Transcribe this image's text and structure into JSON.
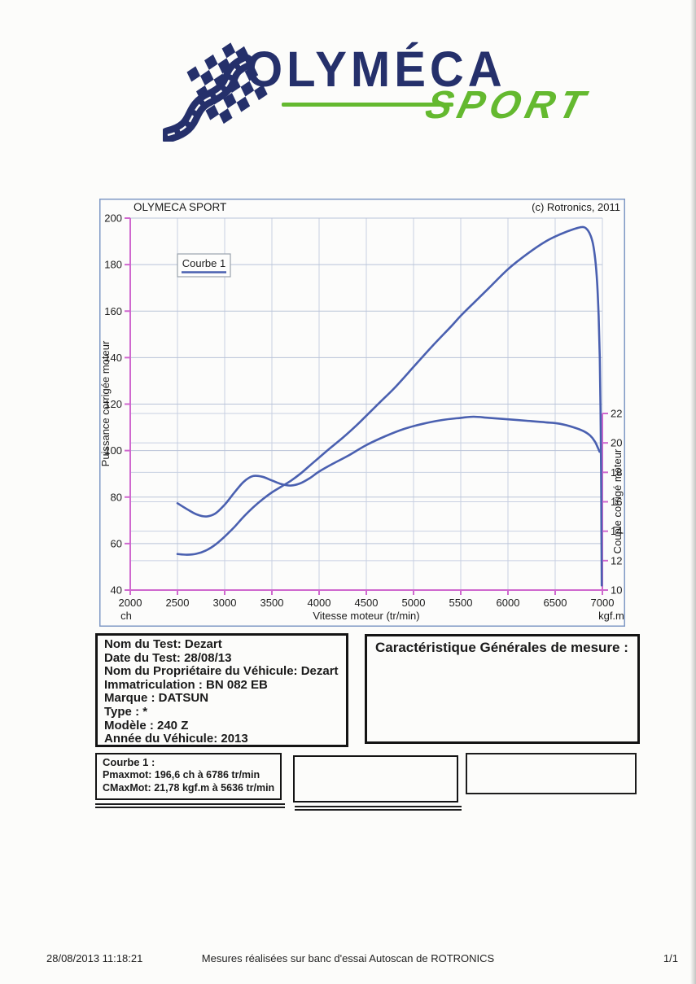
{
  "logo": {
    "title": "OLYMÉCA",
    "subtitle": "SPORT",
    "navy": "#25306b",
    "green": "#64b92f"
  },
  "chart_data": {
    "type": "line",
    "title": "OLYMECA SPORT",
    "copyright": "(c) Rotronics, 2011",
    "legend": "Courbe 1",
    "xlabel": "Vitesse moteur (tr/min)",
    "ylabel_left": "Puissance corrigée moteur",
    "ylabel_right": "Couple corrigé moteur",
    "unit_left": "ch",
    "unit_right": "kgf.m",
    "x_range": [
      2000,
      7000
    ],
    "x_ticks": [
      2000,
      2500,
      3000,
      3500,
      4000,
      4500,
      5000,
      5500,
      6000,
      6500,
      7000
    ],
    "y_left_range": [
      40,
      200
    ],
    "y_left_ticks": [
      40,
      60,
      80,
      100,
      120,
      140,
      160,
      180,
      200
    ],
    "y_right_range": [
      10,
      22
    ],
    "y_right_ticks": [
      10,
      12,
      14,
      16,
      18,
      20,
      22
    ],
    "grid": true,
    "legend_position": "top-left-inside",
    "colors": {
      "curve": "#4a60b0",
      "axis": "#cf68ce",
      "grid_major": "#b9c3d8",
      "grid_minor": "#c8d0e2",
      "frame": "#7e98c4"
    },
    "series": [
      {
        "name": "Puissance corrigée moteur (ch) - Courbe 1",
        "axis": "left",
        "points": [
          [
            2500,
            55.5
          ],
          [
            2600,
            55.2
          ],
          [
            2700,
            55.6
          ],
          [
            2800,
            57
          ],
          [
            2900,
            59.5
          ],
          [
            3000,
            63
          ],
          [
            3100,
            67
          ],
          [
            3200,
            71.5
          ],
          [
            3300,
            75.5
          ],
          [
            3400,
            79
          ],
          [
            3500,
            82
          ],
          [
            3600,
            84.5
          ],
          [
            3700,
            87
          ],
          [
            3800,
            90
          ],
          [
            3900,
            93.5
          ],
          [
            4000,
            97
          ],
          [
            4100,
            100.5
          ],
          [
            4250,
            105.5
          ],
          [
            4400,
            111
          ],
          [
            4500,
            115
          ],
          [
            4650,
            121
          ],
          [
            4800,
            127
          ],
          [
            5000,
            136
          ],
          [
            5200,
            145
          ],
          [
            5400,
            153.5
          ],
          [
            5500,
            158
          ],
          [
            5650,
            164
          ],
          [
            5800,
            170
          ],
          [
            6000,
            178
          ],
          [
            6200,
            184.5
          ],
          [
            6400,
            190
          ],
          [
            6550,
            193
          ],
          [
            6700,
            195.3
          ],
          [
            6786,
            196.2
          ],
          [
            6830,
            195.5
          ],
          [
            6870,
            193
          ],
          [
            6900,
            189
          ],
          [
            6925,
            182
          ],
          [
            6945,
            172
          ],
          [
            6960,
            158
          ],
          [
            6972,
            140
          ],
          [
            6980,
            118
          ],
          [
            6986,
            92
          ],
          [
            6990,
            65
          ],
          [
            6993,
            42
          ]
        ]
      },
      {
        "name": "Couple corrigé moteur (kgf.m) - Courbe 1",
        "axis": "right",
        "points": [
          [
            2500,
            15.9
          ],
          [
            2600,
            15.5
          ],
          [
            2700,
            15.15
          ],
          [
            2800,
            15.0
          ],
          [
            2900,
            15.2
          ],
          [
            3000,
            15.8
          ],
          [
            3100,
            16.6
          ],
          [
            3200,
            17.35
          ],
          [
            3300,
            17.75
          ],
          [
            3400,
            17.7
          ],
          [
            3500,
            17.45
          ],
          [
            3600,
            17.2
          ],
          [
            3700,
            17.1
          ],
          [
            3800,
            17.25
          ],
          [
            3900,
            17.6
          ],
          [
            4000,
            18.05
          ],
          [
            4150,
            18.6
          ],
          [
            4300,
            19.1
          ],
          [
            4500,
            19.85
          ],
          [
            4700,
            20.45
          ],
          [
            4900,
            20.95
          ],
          [
            5100,
            21.3
          ],
          [
            5300,
            21.55
          ],
          [
            5500,
            21.7
          ],
          [
            5636,
            21.78
          ],
          [
            5800,
            21.7
          ],
          [
            6000,
            21.6
          ],
          [
            6200,
            21.5
          ],
          [
            6400,
            21.4
          ],
          [
            6550,
            21.3
          ],
          [
            6700,
            21.05
          ],
          [
            6800,
            20.8
          ],
          [
            6870,
            20.5
          ],
          [
            6920,
            20.1
          ],
          [
            6950,
            19.7
          ],
          [
            6970,
            19.4
          ]
        ]
      }
    ]
  },
  "vehicle_info": {
    "lines": [
      "Nom du Test: Dezart",
      "Date du Test: 28/08/13",
      "Nom du Propriétaire du Véhicule: Dezart",
      "Immatriculation  : BN 082 EB",
      "Marque  : DATSUN",
      "Type  : *",
      "Modèle  : 240 Z",
      "Année du Véhicule: 2013"
    ]
  },
  "characteristics_box": {
    "title": "Caractéristique Générales de mesure :"
  },
  "results_box": {
    "title": "Courbe 1 :",
    "lines": [
      "Pmaxmot: 196,6 ch à 6786 tr/min",
      "CMaxMot: 21,78 kgf.m à 5636 tr/min"
    ]
  },
  "footer": {
    "datetime": "28/08/2013 11:18:21",
    "center": "Mesures réalisées sur banc d'essai Autoscan de ROTRONICS",
    "page": "1/1"
  }
}
